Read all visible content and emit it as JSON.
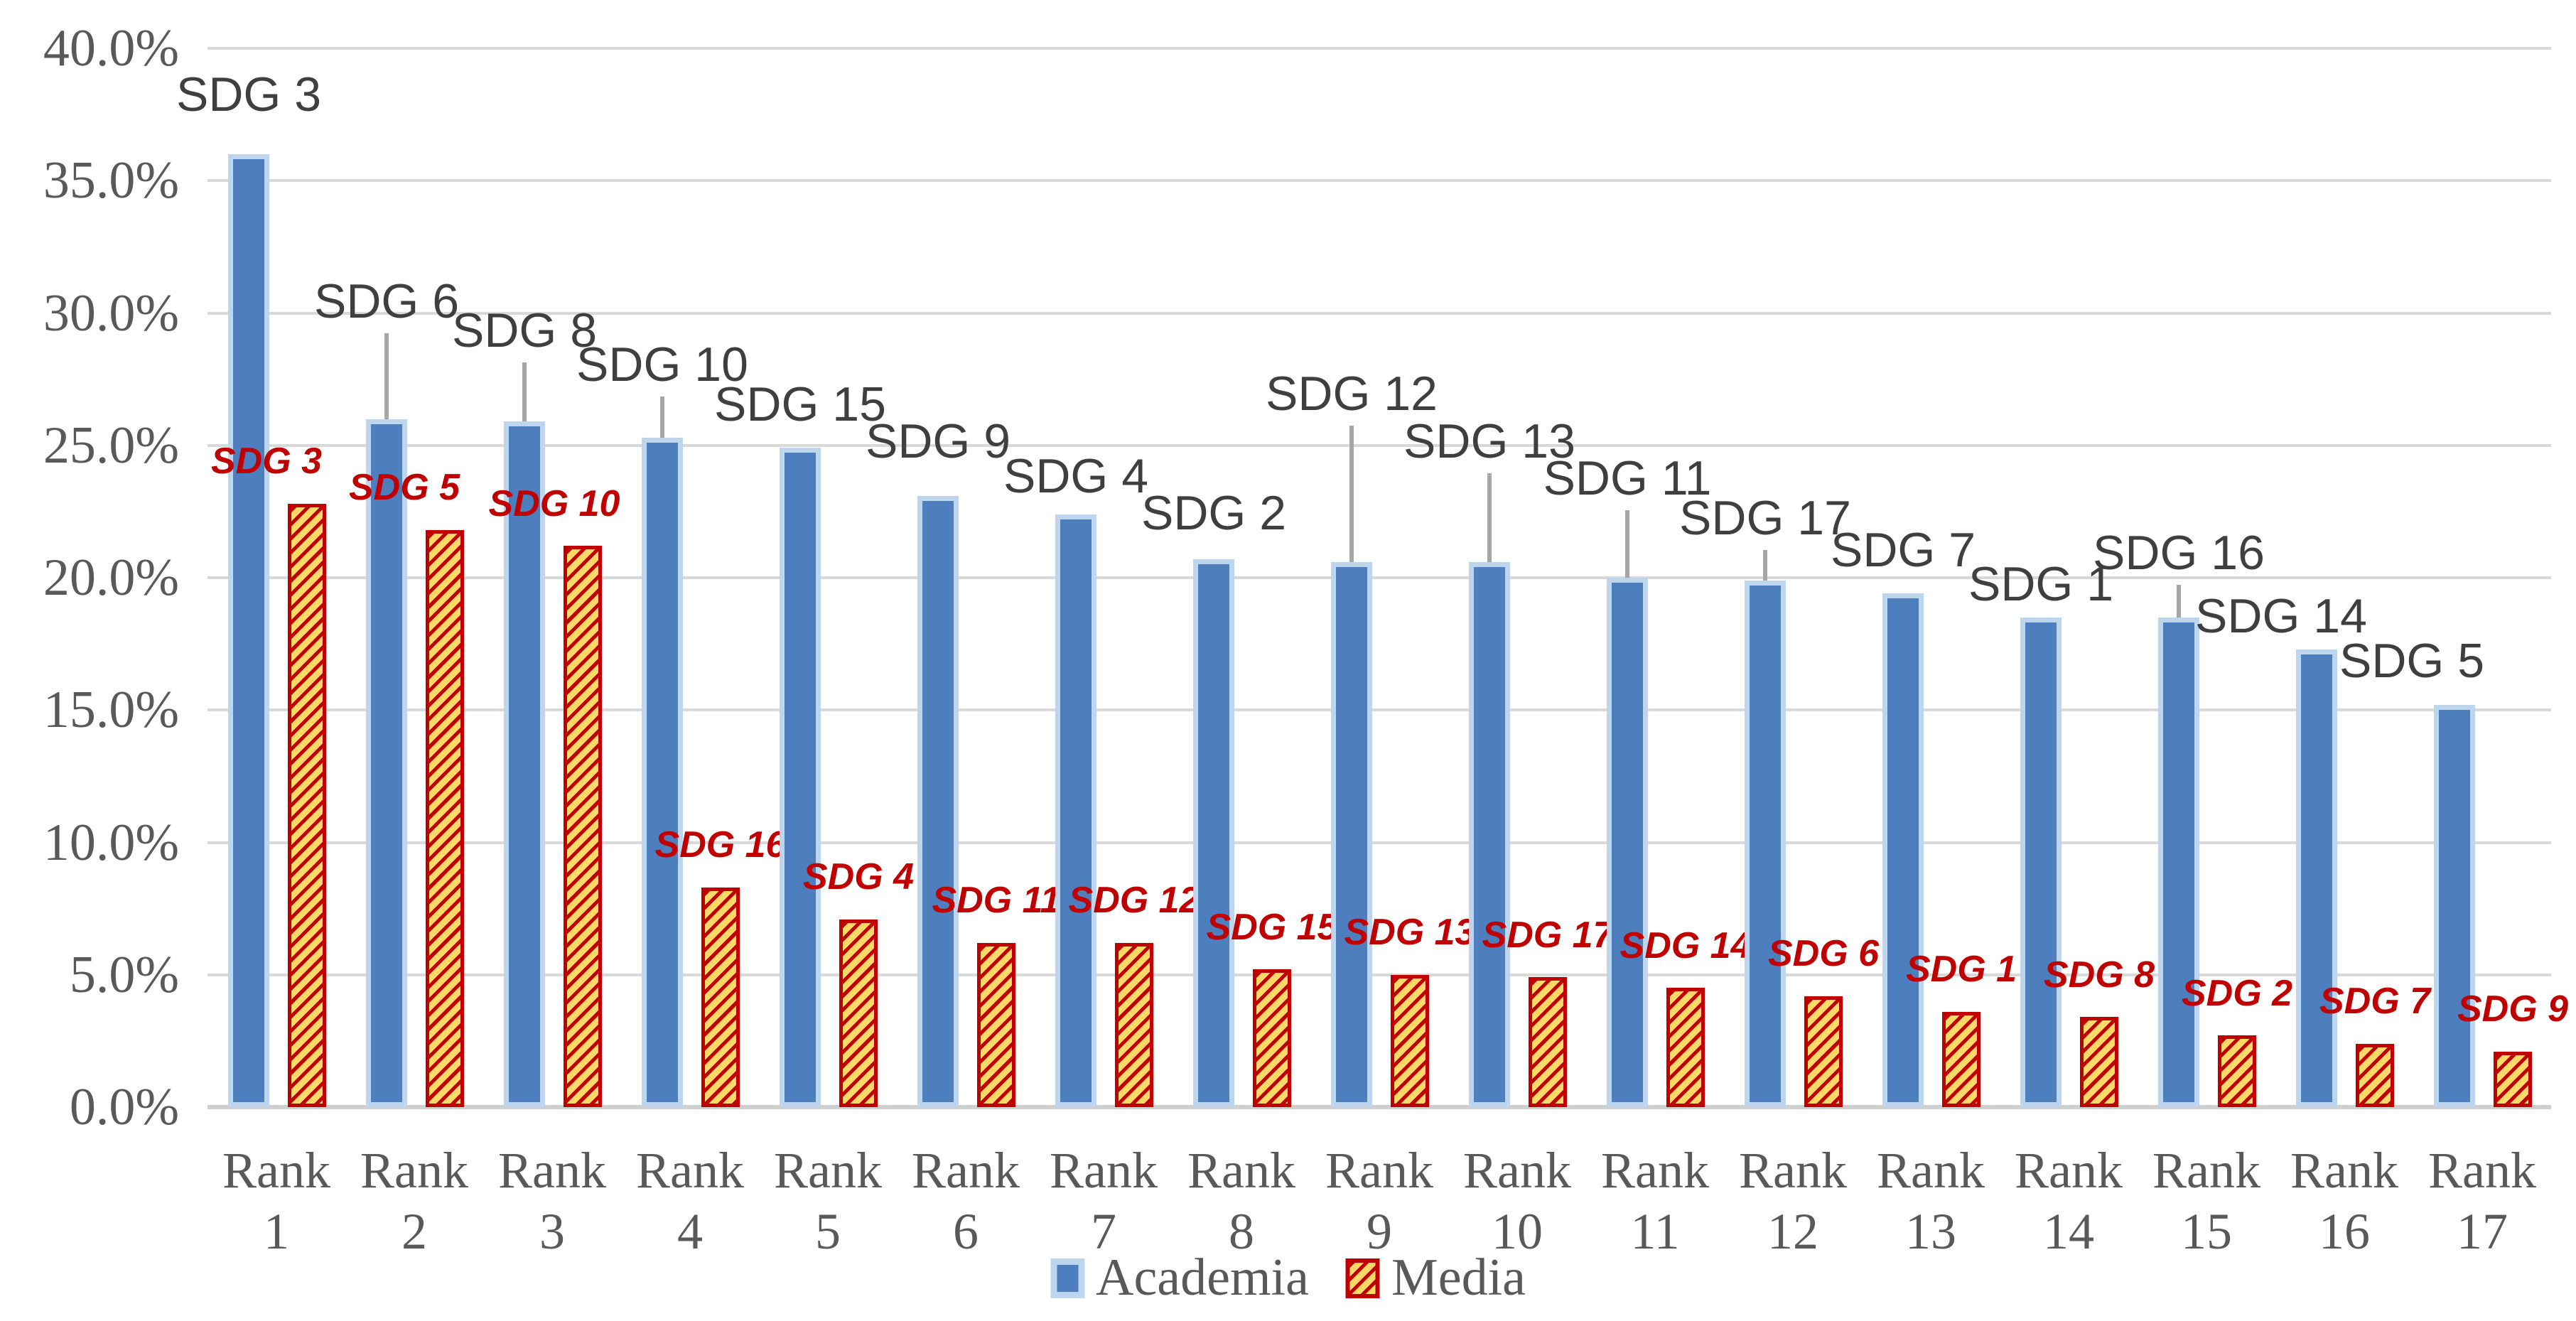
{
  "chart_data": {
    "type": "bar",
    "title": "",
    "xlabel": "",
    "ylabel": "",
    "ylim": [
      0,
      40
    ],
    "ytick_step": 5,
    "grid": true,
    "legend_position": "bottom",
    "y_tick_labels": [
      "40.0%",
      "35.0%",
      "30.0%",
      "25.0%",
      "20.0%",
      "15.0%",
      "10.0%",
      "5.0%",
      "0.0%"
    ],
    "category_word": "Rank",
    "categories": [
      "Rank 1",
      "Rank 2",
      "Rank 3",
      "Rank 4",
      "Rank 5",
      "Rank 6",
      "Rank 7",
      "Rank 8",
      "Rank 9",
      "Rank 10",
      "Rank 11",
      "Rank 12",
      "Rank 13",
      "Rank 14",
      "Rank 15",
      "Rank 16",
      "Rank 17"
    ],
    "series": [
      {
        "name": "Academia",
        "fill_color": "#4d7ebe",
        "border_color": "#bdd6ee",
        "values": [
          36.0,
          26.0,
          25.9,
          25.3,
          24.9,
          23.1,
          22.4,
          20.7,
          20.6,
          20.6,
          20.0,
          19.9,
          19.4,
          18.5,
          18.5,
          17.3,
          15.2
        ],
        "point_labels": [
          "SDG 3",
          "SDG 6",
          "SDG 8",
          "SDG 10",
          "SDG 15",
          "SDG 9",
          "SDG 4",
          "SDG 2",
          "SDG 12",
          "SDG 13",
          "SDG 11",
          "SDG 17",
          "SDG 7",
          "SDG 1",
          "SDG 16",
          "SDG 14",
          "SDG 5"
        ],
        "label_color": "#3f3f3f",
        "label_gap_pp": [
          1.2,
          3.4,
          2.4,
          1.7,
          0.6,
          1.0,
          0.4,
          0.7,
          5.3,
          3.5,
          2.7,
          1.3,
          0.6,
          0.2,
          1.4,
          0.2,
          0.6
        ],
        "label_leader_line": [
          false,
          true,
          true,
          true,
          false,
          false,
          false,
          false,
          true,
          true,
          true,
          true,
          false,
          false,
          true,
          false,
          false
        ],
        "label_dx": [
          0,
          0,
          0,
          0,
          0,
          0,
          0,
          0,
          0,
          0,
          0,
          0,
          0,
          0,
          0,
          -50,
          -60
        ],
        "leader_line_color": "#a6a6a6"
      },
      {
        "name": "Media",
        "fill_color": "#ffd967",
        "hatch_color": "#c00000",
        "border_color": "#c00000",
        "values": [
          22.8,
          21.8,
          21.2,
          8.3,
          7.1,
          6.2,
          6.2,
          5.2,
          5.0,
          4.9,
          4.5,
          4.2,
          3.6,
          3.4,
          2.7,
          2.4,
          2.1
        ],
        "point_labels": [
          "SDG 3",
          "SDG 5",
          "SDG 10",
          "SDG 16",
          "SDG 4",
          "SDG 11",
          "SDG 12",
          "SDG 15",
          "SDG 13",
          "SDG 17",
          "SDG 14",
          "SDG 6",
          "SDG 1",
          "SDG 8",
          "SDG 2",
          "SDG 7",
          "SDG 9"
        ],
        "label_color": "#c00000",
        "label_gap_pp": 0.8,
        "label_dx": [
          -57,
          -57,
          -40,
          0,
          0,
          0,
          0,
          0,
          0,
          0,
          0,
          0,
          0,
          0,
          0,
          0,
          0
        ]
      }
    ]
  },
  "legend": {
    "academia_label": "Academia",
    "media_label": "Media"
  },
  "colors": {
    "gridline": "#d9d9d9",
    "axis_text": "#595959",
    "background": "#ffffff"
  }
}
